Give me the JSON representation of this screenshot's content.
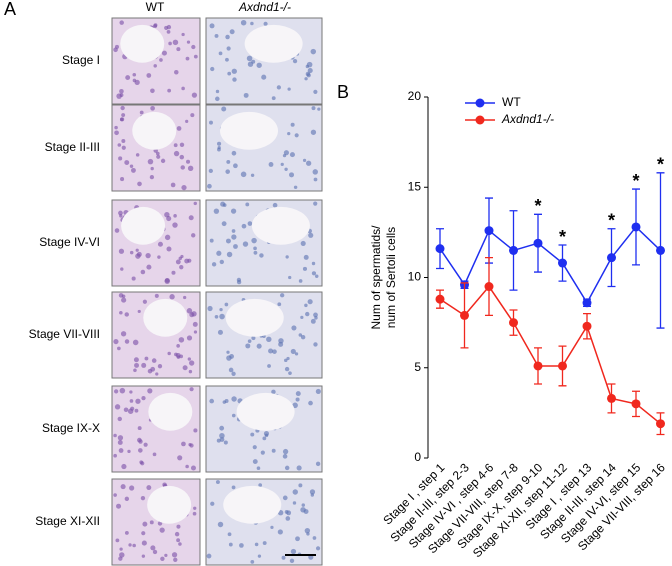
{
  "panel_a": {
    "label": "A",
    "columns": [
      "WT",
      "Axdnd1-/-"
    ],
    "rows": [
      "Stage I",
      "Stage II-III",
      "Stage IV-VI",
      "Stage VII-VIII",
      "Stage IX-X",
      "Stage XI-XII"
    ]
  },
  "chart_data": {
    "type": "line",
    "panel_label": "B",
    "y_label": [
      "Num of spermatids/",
      "num of Sertoli cells"
    ],
    "categories": [
      "Stage I , step 1",
      "Stage II-III, step 2-3",
      "Stage IV-VI , step 4-6",
      "Stage VII-VIII, step 7-8",
      "Stage IX-X, step 9-10",
      "Stage XI-XII, step 11-12",
      "Stage I , step 13",
      "Stage II-III, step 14",
      "Stage IV-VI, step 15",
      "Stage VII-VIII, step 16"
    ],
    "series": [
      {
        "name": "WT",
        "color": "#1f2ff0",
        "values": [
          11.6,
          9.6,
          12.6,
          11.5,
          11.9,
          10.8,
          8.6,
          11.1,
          12.8,
          11.5
        ],
        "errors": [
          1.1,
          0.2,
          1.8,
          2.2,
          1.6,
          1.0,
          0.2,
          1.6,
          2.1,
          4.3
        ]
      },
      {
        "name": "Axdnd1-/-",
        "color": "#f0281e",
        "values": [
          8.8,
          7.9,
          9.5,
          7.5,
          5.1,
          5.1,
          7.3,
          3.3,
          3.0,
          1.9
        ],
        "errors": [
          0.5,
          1.8,
          1.6,
          0.7,
          1.0,
          1.1,
          0.7,
          0.8,
          0.7,
          0.6
        ]
      }
    ],
    "significance_labels": [
      null,
      null,
      null,
      null,
      "*",
      "*",
      null,
      "*",
      "*",
      "*"
    ],
    "ylim": [
      0,
      20
    ],
    "yticks": [
      0,
      5,
      10,
      15,
      20
    ]
  }
}
